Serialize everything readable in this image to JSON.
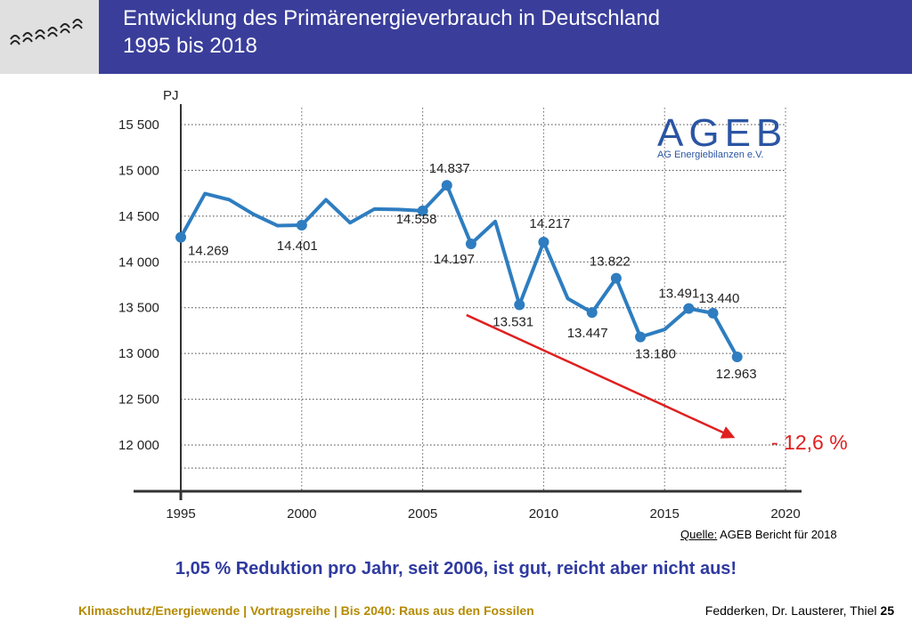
{
  "header": {
    "title_line1": "Entwicklung des Primärenergieverbrauch in Deutschland",
    "title_line2": "1995 bis 2018"
  },
  "logo": {
    "text": "AGEB",
    "subtitle": "AG Energiebilanzen e.V."
  },
  "chart_data": {
    "type": "line",
    "ylabel": "PJ",
    "xlim": [
      1995,
      2020
    ],
    "ylim": [
      11750,
      15500
    ],
    "x_ticks": [
      "1995",
      "2000",
      "2005",
      "2010",
      "2015",
      "2020"
    ],
    "y_ticks": [
      "15 500",
      "15 000",
      "14 500",
      "14 000",
      "13 500",
      "13 000",
      "12 500",
      "12 000"
    ],
    "y_tick_values": [
      15500,
      15000,
      14500,
      14000,
      13500,
      13000,
      12500,
      12000
    ],
    "grid": true,
    "series": [
      {
        "x": [
          1995,
          1996,
          1997,
          1998,
          1999,
          2000,
          2001,
          2002,
          2003,
          2004,
          2005,
          2006,
          2007,
          2008,
          2009,
          2010,
          2011,
          2012,
          2013,
          2014,
          2015,
          2016,
          2017,
          2018
        ],
        "y": [
          14269,
          14746,
          14680,
          14521,
          14396,
          14401,
          14679,
          14428,
          14577,
          14573,
          14558,
          14837,
          14197,
          14442,
          13531,
          14217,
          13599,
          13447,
          13822,
          13180,
          13262,
          13491,
          13440,
          12963
        ],
        "color": "#2e7dc0"
      }
    ],
    "annotations": [
      {
        "x": 1995,
        "y": 14269,
        "label": "14.269"
      },
      {
        "x": 2000,
        "y": 14401,
        "label": "14.401"
      },
      {
        "x": 2005,
        "y": 14558,
        "label": "14.558"
      },
      {
        "x": 2006,
        "y": 14837,
        "label": "14.837"
      },
      {
        "x": 2007,
        "y": 14197,
        "label": "14.197"
      },
      {
        "x": 2009,
        "y": 13531,
        "label": "13.531"
      },
      {
        "x": 2010,
        "y": 14217,
        "label": "14.217"
      },
      {
        "x": 2012,
        "y": 13447,
        "label": "13.447"
      },
      {
        "x": 2013,
        "y": 13822,
        "label": "13.822"
      },
      {
        "x": 2014,
        "y": 13180,
        "label": "13.180"
      },
      {
        "x": 2016,
        "y": 13491,
        "label": "13.491"
      },
      {
        "x": 2017,
        "y": 13440,
        "label": "13.440"
      },
      {
        "x": 2018,
        "y": 12963,
        "label": "12.963"
      }
    ],
    "trend_arrow": {
      "from": [
        2006,
        13420
      ],
      "to": [
        2018,
        12050
      ],
      "color": "#e02020",
      "label": "- 12,6 %"
    }
  },
  "source": {
    "label": "Quelle:",
    "text": "AGEB Bericht für 2018"
  },
  "conclusion": "1,05 % Reduktion pro Jahr, seit 2006, ist gut, reicht aber nicht aus!",
  "footer": {
    "left": "Klimaschutz/Energiewende | Vortragsreihe | Bis 2040: Raus aus den Fossilen",
    "right": "Fedderken, Dr. Lausterer, Thiel",
    "page": "25"
  },
  "colors": {
    "header_bg": "#3a3e9a",
    "line": "#2e7dc0",
    "arrow": "#e02020",
    "conclusion": "#2f3aa0",
    "footer_left": "#b58a00"
  }
}
